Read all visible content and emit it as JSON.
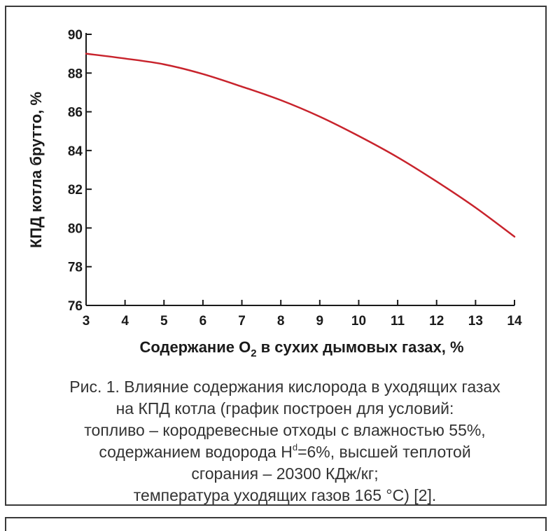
{
  "chart_data": {
    "type": "line",
    "title": "",
    "xlabel_parts": {
      "before": "Содержание O",
      "sub": "2",
      "after": " в сухих дымовых газах, %"
    },
    "ylabel": "КПД котла брутто, %",
    "xlim": [
      3,
      14
    ],
    "ylim": [
      76,
      90
    ],
    "x_ticks": [
      "3",
      "4",
      "5",
      "6",
      "7",
      "8",
      "9",
      "10",
      "11",
      "12",
      "13",
      "14"
    ],
    "y_ticks": [
      "76",
      "78",
      "80",
      "82",
      "84",
      "86",
      "88",
      "90"
    ],
    "grid": false,
    "series": [
      {
        "name": "КПД",
        "color": "#c8232c",
        "x": [
          3,
          4,
          5,
          6,
          7,
          8,
          9,
          10,
          11,
          12,
          13,
          14
        ],
        "y": [
          89.0,
          88.75,
          88.45,
          87.95,
          87.3,
          86.6,
          85.75,
          84.75,
          83.65,
          82.4,
          81.05,
          79.55
        ]
      }
    ]
  },
  "caption": {
    "line1": "Рис. 1. Влияние содержания кислорода в уходящих газах",
    "line2": "на КПД котла (график построен для условий:",
    "line3": "топливо – кородревесные отходы с влажностью 55%,",
    "line4_before": "содержанием водорода H",
    "line4_sup": "d",
    "line4_after": "=6%, высшей теплотой",
    "line5": "сгорания – 20300 КДж/кг;",
    "line6": "температура уходящих газов 165 °С) [2]."
  }
}
